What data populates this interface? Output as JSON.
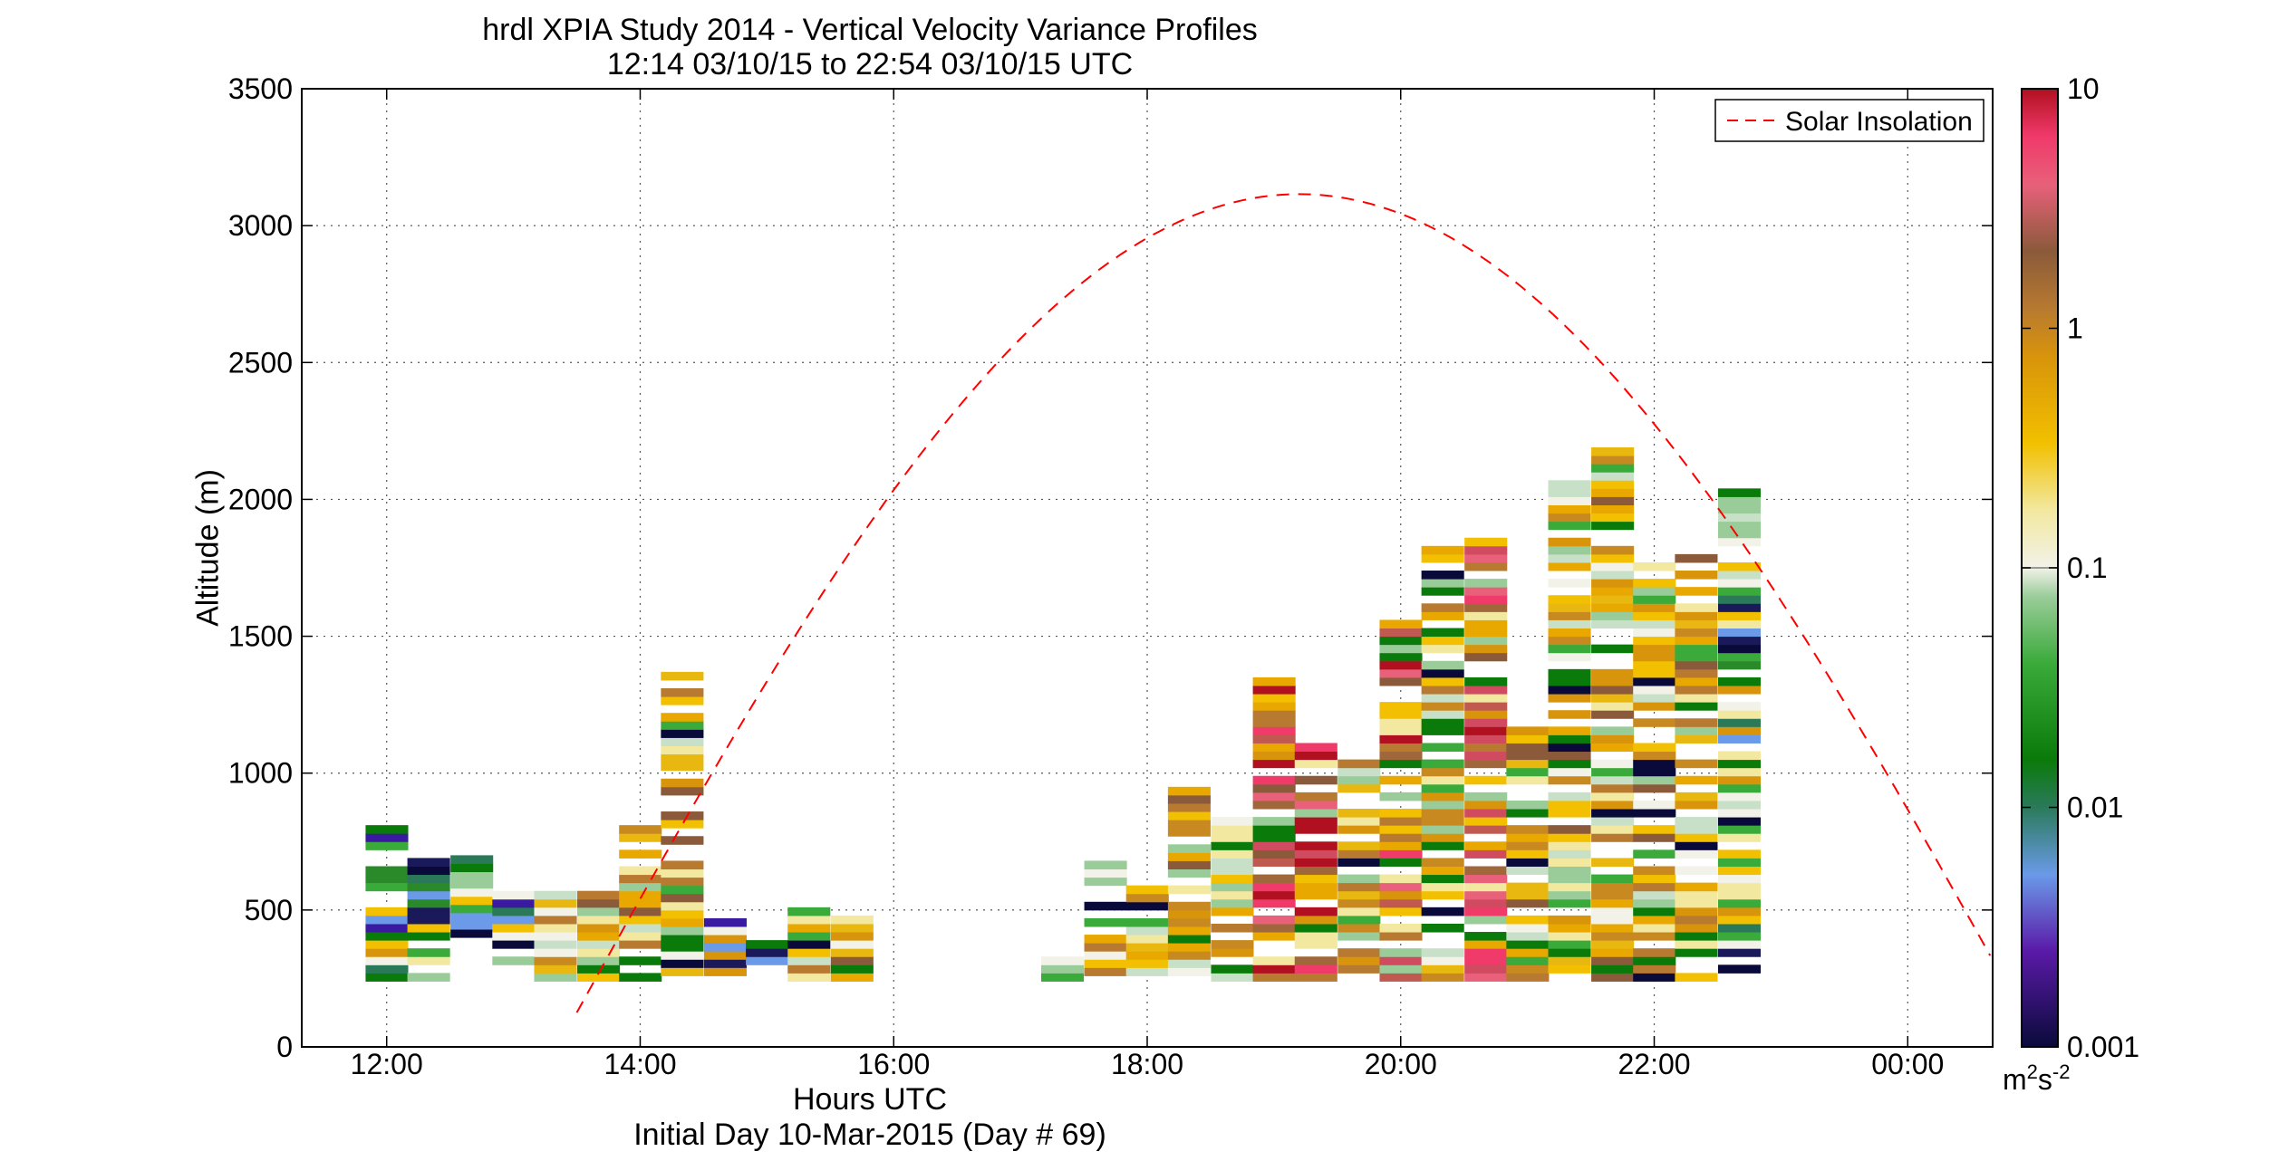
{
  "title": "hrdl XPIA Study 2014 - Vertical Velocity Variance Profiles",
  "subtitle": "12:14 03/10/15 to 22:54 03/10/15  UTC",
  "xlabel": "Hours UTC",
  "ylabel": "Altitude (m)",
  "footer": "Initial Day 10-Mar-2015 (Day # 69)",
  "legend_label": "Solar Insolation",
  "colorbar": {
    "unit": "m^2 s^-2",
    "unit_base": "m",
    "unit_sup1": "2",
    "unit_mid": "s",
    "unit_sup2": "-2",
    "scale": "log",
    "ticks": [
      "10",
      "1",
      "0.1",
      "0.01",
      "0.001"
    ],
    "tick_values": [
      10,
      1,
      0.1,
      0.01,
      0.001
    ]
  },
  "chart_data": {
    "type": "heatmap",
    "title": "hrdl XPIA Study 2014 - Vertical Velocity Variance Profiles",
    "subtitle": "12:14 03/10/15 to 22:54 03/10/15  UTC",
    "xlabel": "Hours UTC",
    "ylabel": "Altitude (m)",
    "xlim": [
      11.33,
      24.67
    ],
    "ylim": [
      0,
      3500
    ],
    "x_ticks": [
      "12:00",
      "14:00",
      "16:00",
      "18:00",
      "20:00",
      "22:00",
      "00:00"
    ],
    "x_tick_values": [
      12,
      14,
      16,
      18,
      20,
      22,
      24
    ],
    "y_ticks": [
      "0",
      "500",
      "1000",
      "1500",
      "2000",
      "2500",
      "3000",
      "3500"
    ],
    "y_tick_values": [
      0,
      500,
      1000,
      1500,
      2000,
      2500,
      3000,
      3500
    ],
    "grid": true,
    "legend_position": "top-right",
    "bin_width_hours": 0.333,
    "gate_spacing_m": 30,
    "columns": [
      {
        "t": 12.0,
        "top": 790,
        "bottom": 240,
        "level": "low"
      },
      {
        "t": 12.33,
        "top": 680,
        "bottom": 240,
        "level": "low"
      },
      {
        "t": 12.67,
        "top": 700,
        "bottom": 400,
        "level": "low"
      },
      {
        "t": 13.0,
        "top": 580,
        "bottom": 300,
        "level": "low"
      },
      {
        "t": 13.33,
        "top": 560,
        "bottom": 240,
        "level": "medium"
      },
      {
        "t": 13.67,
        "top": 560,
        "bottom": 240,
        "level": "medium"
      },
      {
        "t": 14.0,
        "top": 800,
        "bottom": 240,
        "level": "medium"
      },
      {
        "t": 14.33,
        "top": 1370,
        "bottom": 260,
        "level": "medium"
      },
      {
        "t": 14.67,
        "top": 460,
        "bottom": 260,
        "level": "low"
      },
      {
        "t": 15.0,
        "top": 380,
        "bottom": 240,
        "level": "low"
      },
      {
        "t": 15.33,
        "top": 490,
        "bottom": 240,
        "level": "medium"
      },
      {
        "t": 15.67,
        "top": 490,
        "bottom": 240,
        "level": "medium"
      },
      {
        "t": 17.33,
        "top": 320,
        "bottom": 240,
        "level": "low"
      },
      {
        "t": 17.67,
        "top": 670,
        "bottom": 260,
        "level": "medium"
      },
      {
        "t": 18.0,
        "top": 580,
        "bottom": 260,
        "level": "medium"
      },
      {
        "t": 18.33,
        "top": 950,
        "bottom": 260,
        "level": "medium"
      },
      {
        "t": 18.67,
        "top": 860,
        "bottom": 240,
        "level": "medium"
      },
      {
        "t": 19.0,
        "top": 1340,
        "bottom": 240,
        "level": "high"
      },
      {
        "t": 19.33,
        "top": 1130,
        "bottom": 240,
        "level": "high"
      },
      {
        "t": 19.67,
        "top": 1040,
        "bottom": 240,
        "level": "medium"
      },
      {
        "t": 20.0,
        "top": 1560,
        "bottom": 240,
        "level": "high"
      },
      {
        "t": 20.33,
        "top": 1820,
        "bottom": 240,
        "level": "medium"
      },
      {
        "t": 20.67,
        "top": 1850,
        "bottom": 240,
        "level": "high"
      },
      {
        "t": 21.0,
        "top": 1190,
        "bottom": 240,
        "level": "medium"
      },
      {
        "t": 21.33,
        "top": 2060,
        "bottom": 240,
        "level": "medium"
      },
      {
        "t": 21.67,
        "top": 2180,
        "bottom": 240,
        "level": "medium"
      },
      {
        "t": 22.0,
        "top": 1770,
        "bottom": 240,
        "level": "medium"
      },
      {
        "t": 22.33,
        "top": 1780,
        "bottom": 240,
        "level": "medium"
      },
      {
        "t": 22.67,
        "top": 2030,
        "bottom": 240,
        "level": "low"
      }
    ],
    "series": [
      {
        "name": "Solar Insolation",
        "type": "line",
        "style": "dashed",
        "color": "#ff0000",
        "peak_x": 19.2,
        "peak_y": 3115,
        "x_start": 13.5,
        "x_end": 24.67
      }
    ]
  }
}
